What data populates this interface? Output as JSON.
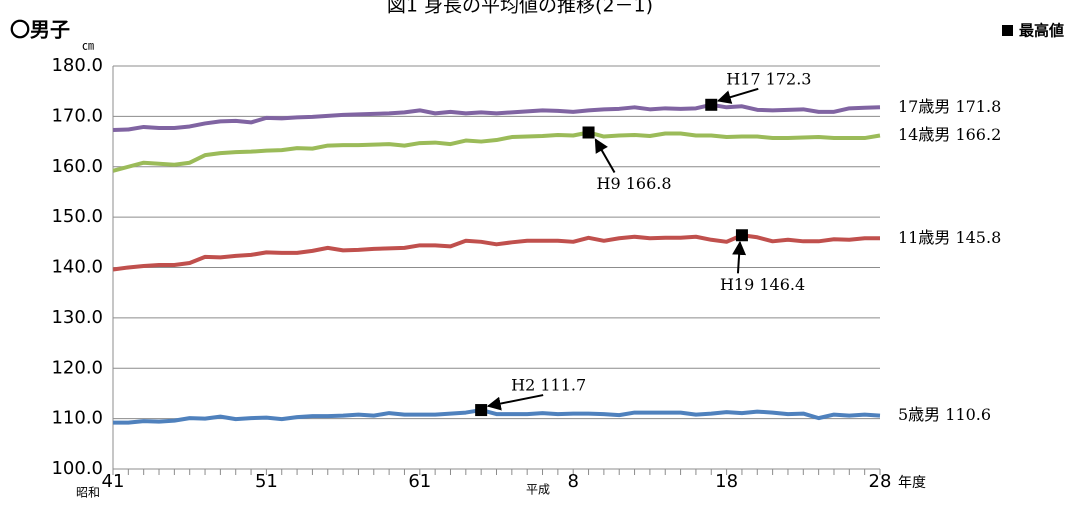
{
  "chart_data": {
    "type": "line",
    "title": "図1 身長の平均値の推移(2－1)",
    "subtitle": "〇男子",
    "y_unit": "㎝",
    "x_unit": "年度",
    "eras": [
      "昭和",
      "平成"
    ],
    "marker_legend": "最高値",
    "x": [
      1966,
      1967,
      1968,
      1969,
      1970,
      1971,
      1972,
      1973,
      1974,
      1975,
      1976,
      1977,
      1978,
      1979,
      1980,
      1981,
      1982,
      1983,
      1984,
      1985,
      1986,
      1987,
      1988,
      1989,
      1990,
      1991,
      1992,
      1993,
      1994,
      1995,
      1996,
      1997,
      1998,
      1999,
      2000,
      2001,
      2002,
      2003,
      2004,
      2005,
      2006,
      2007,
      2008,
      2009,
      2010,
      2011,
      2012,
      2013,
      2014,
      2015,
      2016
    ],
    "xlim": [
      1966,
      2016
    ],
    "xticks": [
      {
        "value": 1966,
        "label": "41"
      },
      {
        "value": 1976,
        "label": "51"
      },
      {
        "value": 1986,
        "label": "61"
      },
      {
        "value": 1996,
        "label": "8"
      },
      {
        "value": 2006,
        "label": "18"
      },
      {
        "value": 2016,
        "label": "28"
      }
    ],
    "ylim": [
      100,
      180
    ],
    "yticks": [
      {
        "value": 100,
        "label": "100.0"
      },
      {
        "value": 110,
        "label": "110.0"
      },
      {
        "value": 120,
        "label": "120.0"
      },
      {
        "value": 130,
        "label": "130.0"
      },
      {
        "value": 140,
        "label": "140.0"
      },
      {
        "value": 150,
        "label": "150.0"
      },
      {
        "value": 160,
        "label": "160.0"
      },
      {
        "value": 170,
        "label": "170.0"
      },
      {
        "value": 180,
        "label": "180.0"
      }
    ],
    "grid": true,
    "series": [
      {
        "name": "17歳男",
        "end_label": "17歳男  171.8",
        "color": "#8064a2",
        "values": [
          167.3,
          167.4,
          167.9,
          167.7,
          167.7,
          168.0,
          168.6,
          169.0,
          169.1,
          168.8,
          169.7,
          169.6,
          169.8,
          169.9,
          170.1,
          170.3,
          170.4,
          170.5,
          170.6,
          170.8,
          171.2,
          170.6,
          170.9,
          170.6,
          170.8,
          170.6,
          170.8,
          171.0,
          171.2,
          171.1,
          170.9,
          171.2,
          171.4,
          171.5,
          171.8,
          171.4,
          171.6,
          171.5,
          171.6,
          172.3,
          171.8,
          172.0,
          171.3,
          171.2,
          171.3,
          171.4,
          170.9,
          170.9,
          171.6,
          171.7,
          171.8
        ]
      },
      {
        "name": "14歳男",
        "end_label": "14歳男  166.2",
        "color": "#9bbb59",
        "values": [
          159.2,
          160.0,
          160.8,
          160.6,
          160.4,
          160.8,
          162.3,
          162.7,
          162.9,
          163.0,
          163.2,
          163.3,
          163.7,
          163.6,
          164.2,
          164.3,
          164.3,
          164.4,
          164.5,
          164.2,
          164.7,
          164.8,
          164.5,
          165.2,
          165.0,
          165.3,
          165.9,
          166.0,
          166.1,
          166.3,
          166.2,
          166.8,
          166.0,
          166.2,
          166.3,
          166.1,
          166.6,
          166.6,
          166.2,
          166.2,
          165.9,
          166.0,
          166.0,
          165.7,
          165.7,
          165.8,
          165.9,
          165.7,
          165.7,
          165.7,
          166.2
        ]
      },
      {
        "name": "11歳男",
        "end_label": "11歳男  145.8",
        "color": "#c0504d",
        "values": [
          139.6,
          140.0,
          140.3,
          140.5,
          140.5,
          140.9,
          142.1,
          142.0,
          142.3,
          142.5,
          143.0,
          142.9,
          142.9,
          143.3,
          143.9,
          143.4,
          143.5,
          143.7,
          143.8,
          143.9,
          144.4,
          144.4,
          144.2,
          145.3,
          145.1,
          144.6,
          145.0,
          145.3,
          145.3,
          145.3,
          145.1,
          145.9,
          145.3,
          145.8,
          146.1,
          145.8,
          145.9,
          145.9,
          146.1,
          145.5,
          145.1,
          146.4,
          146.0,
          145.2,
          145.5,
          145.2,
          145.2,
          145.6,
          145.5,
          145.8,
          145.8
        ]
      },
      {
        "name": "5歳男",
        "end_label": "5歳男  110.6",
        "color": "#4f81bd",
        "values": [
          109.2,
          109.2,
          109.5,
          109.4,
          109.6,
          110.1,
          110.0,
          110.4,
          109.9,
          110.1,
          110.2,
          109.9,
          110.3,
          110.5,
          110.5,
          110.6,
          110.8,
          110.6,
          111.1,
          110.8,
          110.8,
          110.8,
          111.0,
          111.2,
          111.7,
          110.9,
          110.9,
          110.9,
          111.1,
          110.9,
          111.0,
          111.0,
          110.9,
          110.7,
          111.2,
          111.2,
          111.2,
          111.2,
          110.8,
          111.0,
          111.3,
          111.1,
          111.4,
          111.2,
          110.9,
          111.0,
          110.1,
          110.8,
          110.6,
          110.8,
          110.6
        ]
      }
    ],
    "annotations": [
      "H17  172.3",
      "H9  166.8",
      "H19  146.4",
      "H2  111.7"
    ]
  }
}
